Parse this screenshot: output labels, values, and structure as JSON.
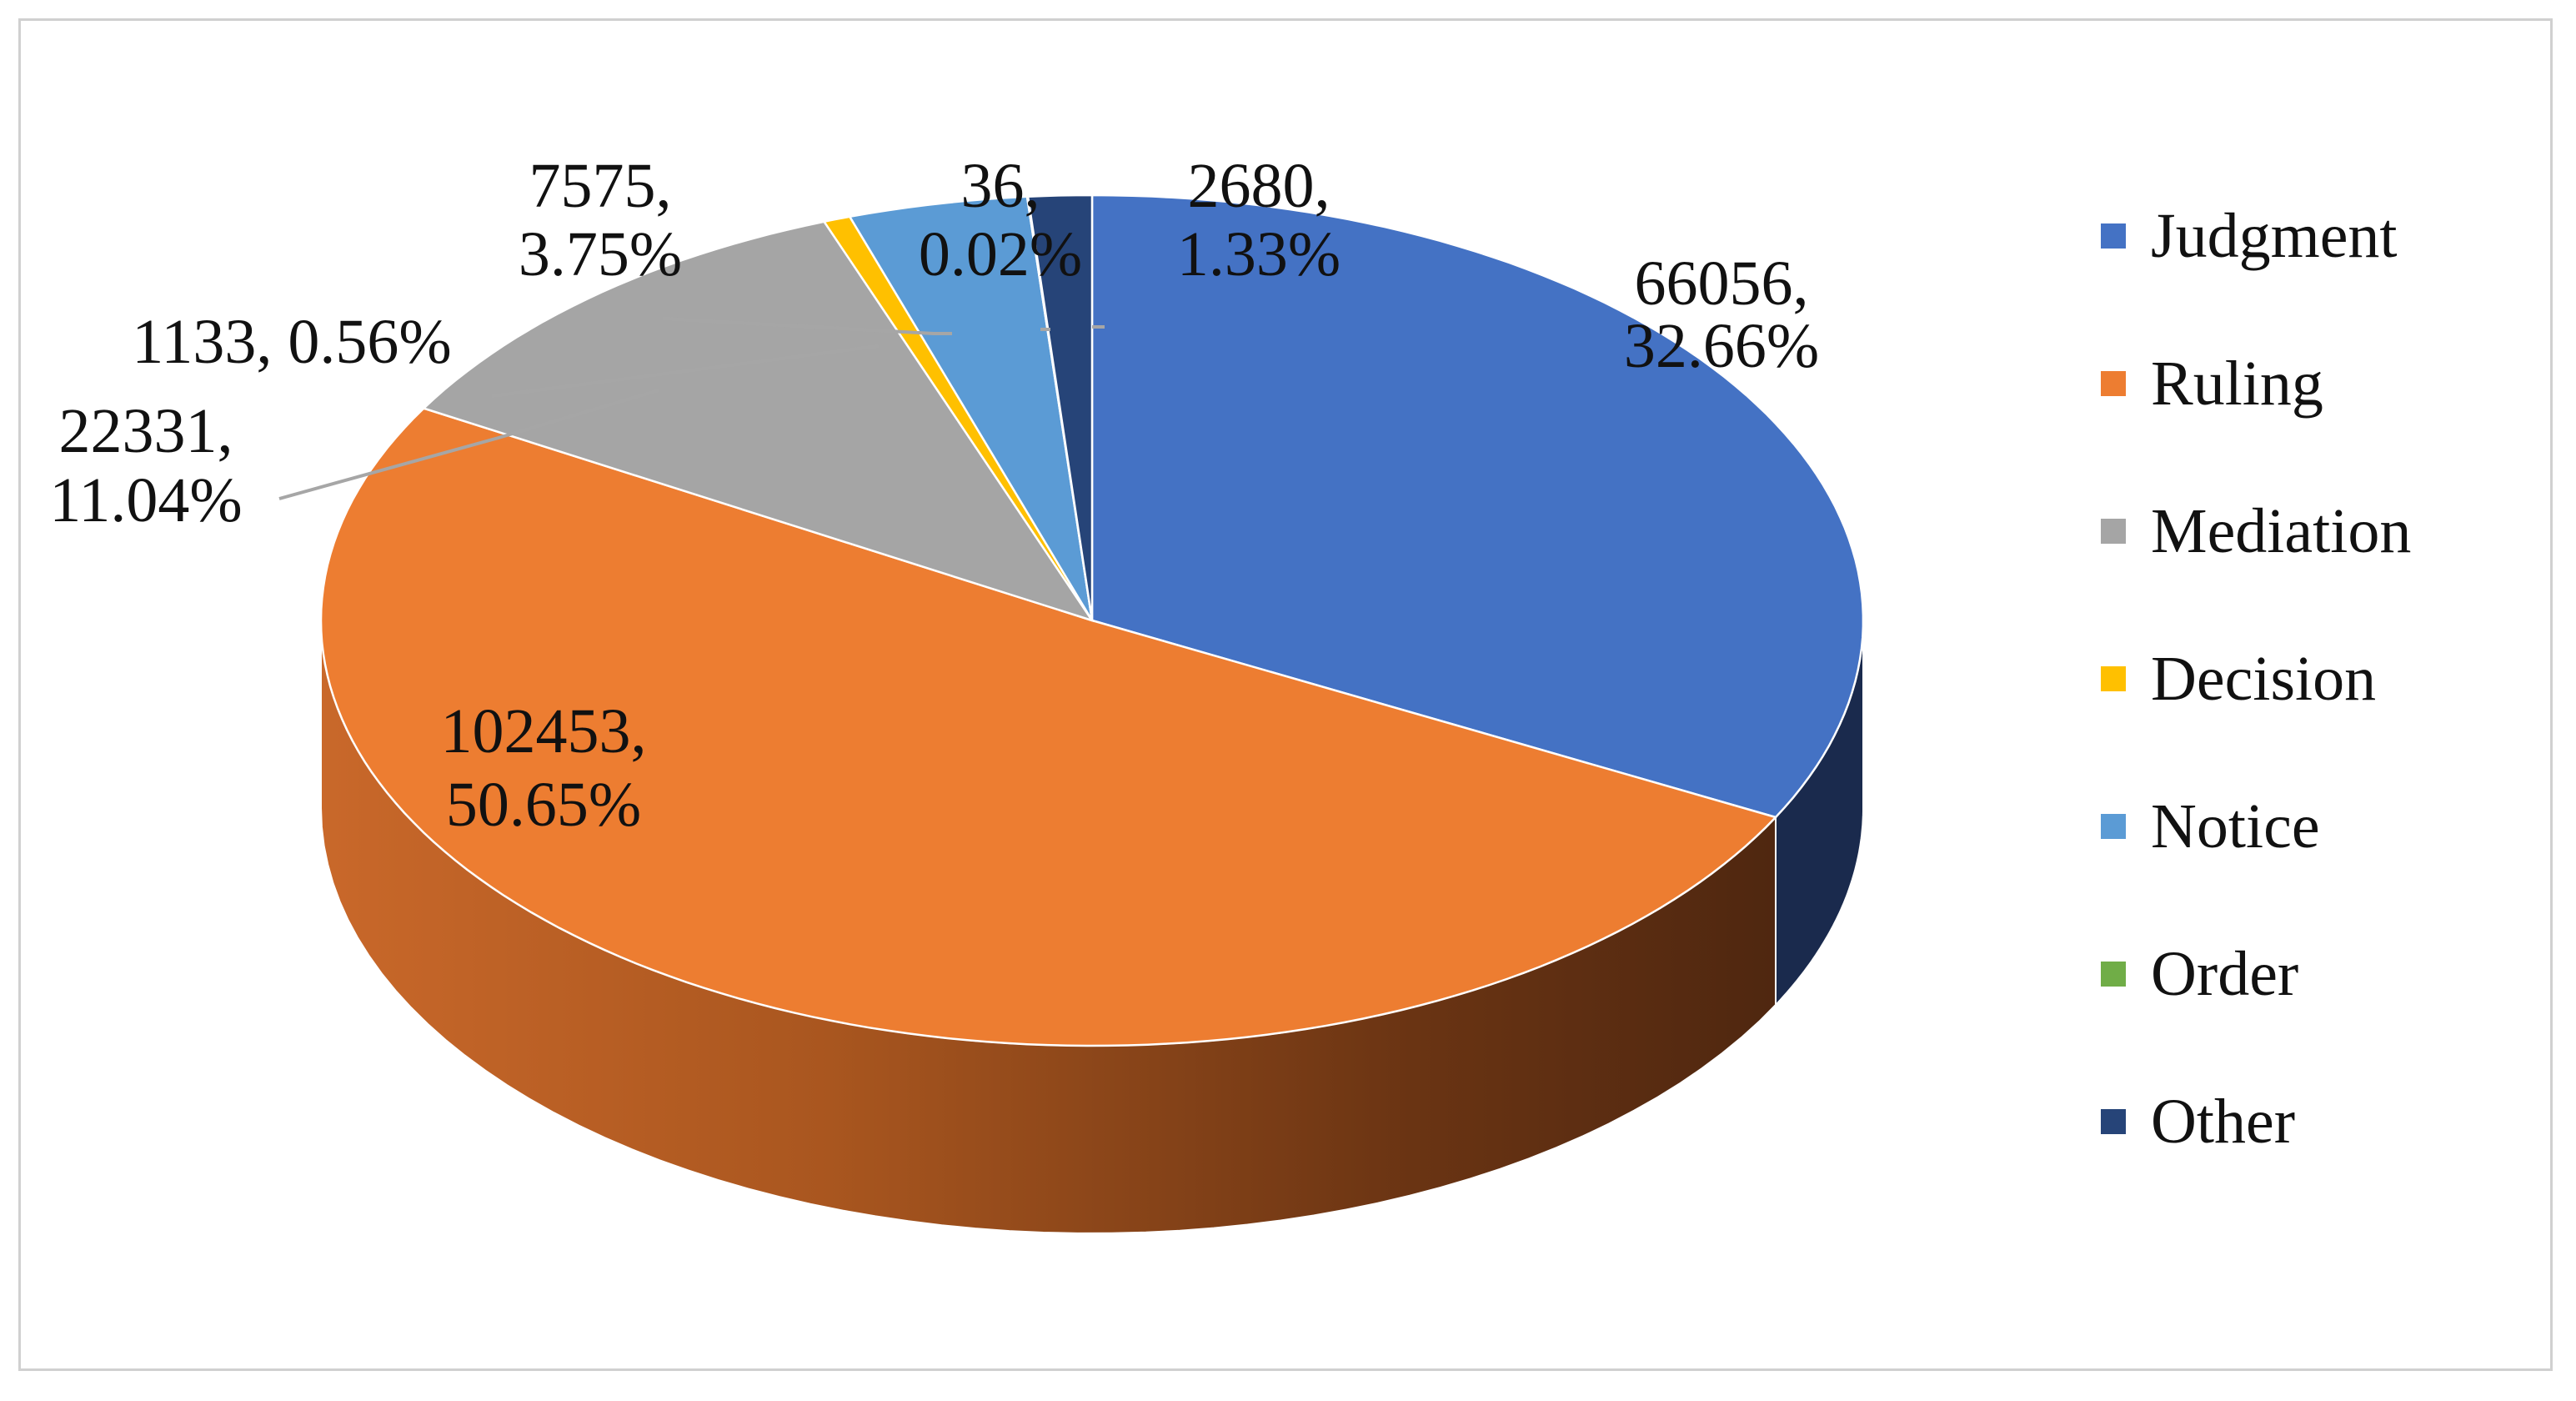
{
  "chart_data": {
    "type": "pie",
    "title": "",
    "legend_position": "right",
    "slices": [
      {
        "label": "Judgment",
        "value": 66056,
        "percent_text": "32.66%",
        "count_text": "66056,",
        "color": "#4472C4"
      },
      {
        "label": "Ruling",
        "value": 102453,
        "percent_text": "50.65%",
        "count_text": "102453,",
        "color": "#ED7D31"
      },
      {
        "label": "Mediation",
        "value": 22331,
        "percent_text": "11.04%",
        "count_text": "22331,",
        "color": "#A5A5A5"
      },
      {
        "label": "Decision",
        "value": 1133,
        "percent_text": "0.56%",
        "count_text": "1133,",
        "color": "#FFC000"
      },
      {
        "label": "Notice",
        "value": 7575,
        "percent_text": "3.75%",
        "count_text": "7575,",
        "color": "#5B9BD5"
      },
      {
        "label": "Order",
        "value": 36,
        "percent_text": "0.02%",
        "count_text": "36,",
        "color": "#70AD47"
      },
      {
        "label": "Other",
        "value": 2680,
        "percent_text": "1.33%",
        "count_text": "2680,",
        "color": "#264478"
      }
    ]
  }
}
